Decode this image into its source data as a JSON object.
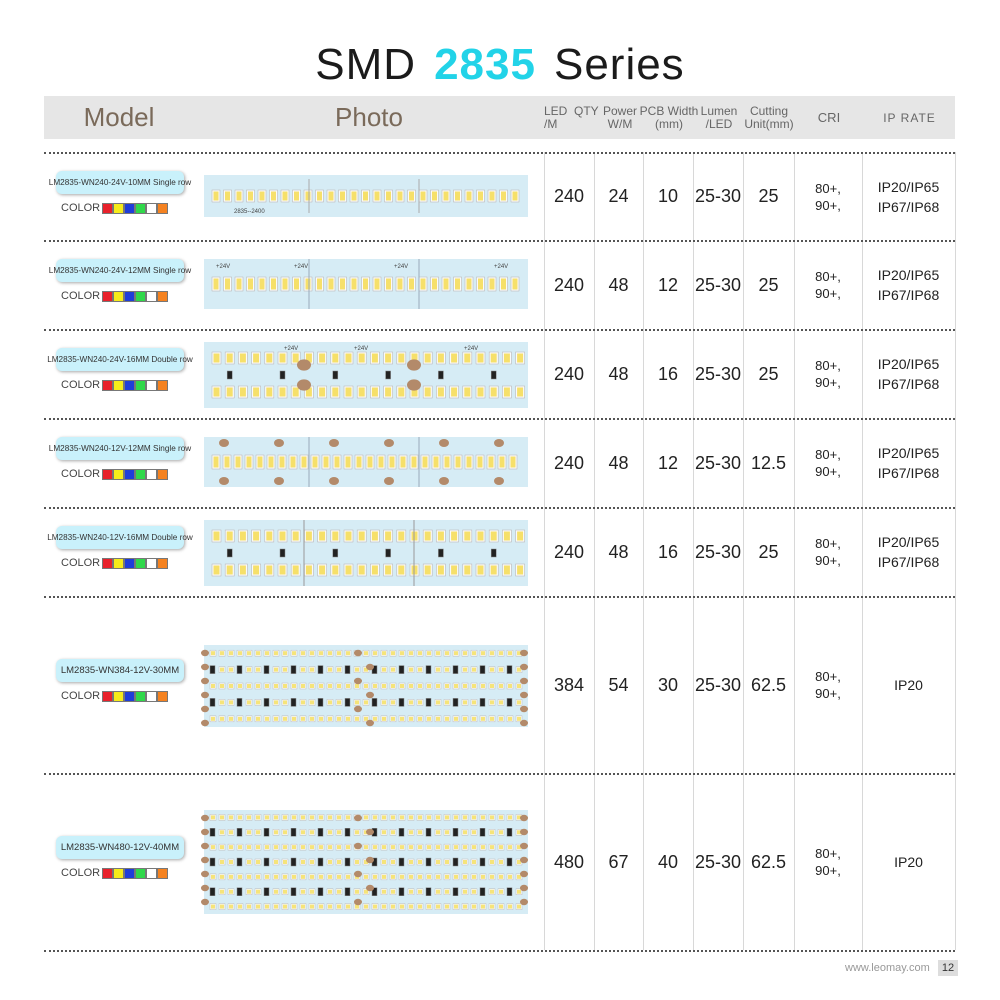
{
  "title": {
    "prefix": "SMD",
    "highlight": "2835",
    "suffix": "Series"
  },
  "header": {
    "model": "Model",
    "photo": "Photo",
    "led_qty": "LED  QTY\n/M",
    "power": "Power\nW/M",
    "pcb": "PCB Width\n(mm)",
    "lumen": "Lumen\n/LED",
    "cutting": "Cutting\nUnit(mm)",
    "cri": "CRI",
    "ip": "IP RATE"
  },
  "color_label": "COLOR",
  "swatch_colors": [
    "#e8212b",
    "#f6ec1a",
    "#1f3ed9",
    "#2fd84a",
    "#ffffff",
    "#f58220"
  ],
  "rows": [
    {
      "model": "LM2835-WN240-24V-10MM Single row",
      "led_qty": "240",
      "power": "24",
      "pcb": "10",
      "lumen": "25-30",
      "cutting": "25",
      "cri_1": "80+,",
      "cri_2": "90+,",
      "ip_1": "IP20/IP65",
      "ip_2": "IP67/IP68",
      "strip_text": "2835--2400",
      "strip_mark": "+24V"
    },
    {
      "model": "LM2835-WN240-24V-12MM Single row",
      "led_qty": "240",
      "power": "48",
      "pcb": "12",
      "lumen": "25-30",
      "cutting": "25",
      "cri_1": "80+,",
      "cri_2": "90+,",
      "ip_1": "IP20/IP65",
      "ip_2": "IP67/IP68",
      "strip_mark": "+24V"
    },
    {
      "model": "LM2835-WN240-24V-16MM Double row",
      "led_qty": "240",
      "power": "48",
      "pcb": "16",
      "lumen": "25-30",
      "cutting": "25",
      "cri_1": "80+,",
      "cri_2": "90+,",
      "ip_1": "IP20/IP65",
      "ip_2": "IP67/IP68",
      "strip_mark": "+24V"
    },
    {
      "model": "LM2835-WN240-12V-12MM Single row",
      "led_qty": "240",
      "power": "48",
      "pcb": "12",
      "lumen": "25-30",
      "cutting": "12.5",
      "cri_1": "80+,",
      "cri_2": "90+,",
      "ip_1": "IP20/IP65",
      "ip_2": "IP67/IP68"
    },
    {
      "model": "LM2835-WN240-12V-16MM Double row",
      "led_qty": "240",
      "power": "48",
      "pcb": "16",
      "lumen": "25-30",
      "cutting": "25",
      "cri_1": "80+,",
      "cri_2": "90+,",
      "ip_1": "IP20/IP65",
      "ip_2": "IP67/IP68"
    },
    {
      "model": "LM2835-WN384-12V-30MM",
      "led_qty": "384",
      "power": "54",
      "pcb": "30",
      "lumen": "25-30",
      "cutting": "62.5",
      "cri_1": "80+,",
      "cri_2": "90+,",
      "ip_1": "IP20",
      "ip_2": ""
    },
    {
      "model": "LM2835-WN480-12V-40MM",
      "led_qty": "480",
      "power": "67",
      "pcb": "40",
      "lumen": "25-30",
      "cutting": "62.5",
      "cri_1": "80+,",
      "cri_2": "90+,",
      "ip_1": "IP20",
      "ip_2": ""
    }
  ],
  "footer": {
    "url": "www.leomay.com",
    "page": "12"
  }
}
